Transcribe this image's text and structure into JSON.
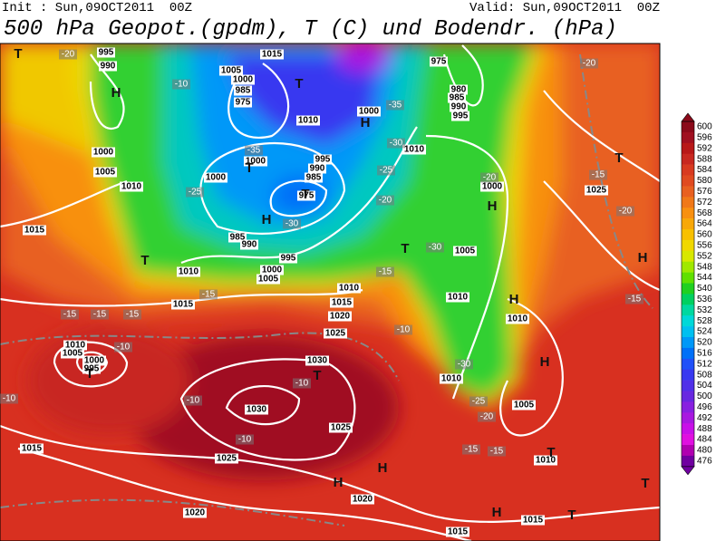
{
  "header": {
    "init": "Init : Sun,09OCT2011  00Z",
    "valid": "Valid: Sun,09OCT2011  00Z",
    "title": "500 hPa Geopot.(gpdm), T (C) und Bodendr. (hPa)"
  },
  "colorbar": {
    "labels": [
      "600",
      "596",
      "592",
      "588",
      "584",
      "580",
      "576",
      "572",
      "568",
      "564",
      "560",
      "556",
      "552",
      "548",
      "544",
      "540",
      "536",
      "532",
      "528",
      "524",
      "520",
      "516",
      "512",
      "508",
      "504",
      "500",
      "496",
      "492",
      "488",
      "484",
      "480",
      "476"
    ],
    "colors": [
      "#8b0a1a",
      "#a01020",
      "#b81818",
      "#c82820",
      "#d83a20",
      "#e04a20",
      "#e86020",
      "#f07818",
      "#f89010",
      "#f8a808",
      "#f8c000",
      "#f0d800",
      "#d8e800",
      "#a0e800",
      "#60e000",
      "#20d020",
      "#00d060",
      "#00d8a0",
      "#00d8d8",
      "#00c0f0",
      "#0098f8",
      "#0070f8",
      "#2050f8",
      "#3838f0",
      "#5030e8",
      "#6828e0",
      "#8820e0",
      "#a818e0",
      "#c810e8",
      "#e010e0",
      "#b000b0",
      "#7000a0"
    ]
  },
  "map_labels": [
    "1015",
    "1005",
    "1000",
    "985",
    "975",
    "1010",
    "1000",
    "995",
    "990",
    "985",
    "975",
    "1000",
    "1000",
    "985",
    "990",
    "995",
    "1000",
    "1005",
    "1010",
    "1015",
    "1010",
    "1015",
    "1020",
    "1025",
    "1030",
    "1030",
    "1025",
    "1025",
    "1020",
    "1020",
    "1015",
    "1015",
    "1015",
    "1010",
    "1005",
    "1010",
    "1010",
    "1010",
    "1005",
    "1000",
    "1010",
    "1025",
    "1015",
    "1010",
    "1005",
    "1000",
    "995",
    "990",
    "975",
    "980",
    "985",
    "990",
    "995",
    "1010",
    "1005",
    "1000",
    "995",
    "-20",
    "-25",
    "-30",
    "-35",
    "-35",
    "-30",
    "-25",
    "-20",
    "-15",
    "-15",
    "-15",
    "-15",
    "-10",
    "-10",
    "-10",
    "-10",
    "-20",
    "-25",
    "-30",
    "-30",
    "-20",
    "-15",
    "-20",
    "-15",
    "-15",
    "-15",
    "-10",
    "-10",
    "-15",
    "-20",
    "-10",
    "H",
    "T",
    "H",
    "T",
    "H",
    "T",
    "T",
    "T",
    "H",
    "H",
    "T",
    "H",
    "H",
    "T",
    "T",
    "H",
    "H",
    "T",
    "T",
    "H",
    "T",
    "T"
  ]
}
